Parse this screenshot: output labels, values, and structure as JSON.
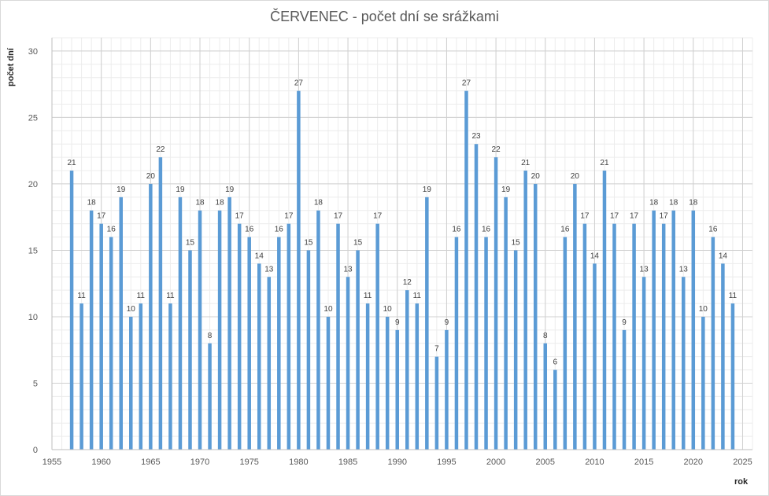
{
  "chart_data": {
    "type": "bar",
    "title": "ČERVENEC - počet dní se srážkami",
    "xlabel": "rok",
    "ylabel": "počet dní",
    "xlim": [
      1955,
      2026
    ],
    "ylim": [
      0,
      31
    ],
    "x_ticks": [
      1955,
      1960,
      1965,
      1970,
      1975,
      1980,
      1985,
      1990,
      1995,
      2000,
      2005,
      2010,
      2015,
      2020,
      2025
    ],
    "y_ticks": [
      0,
      5,
      10,
      15,
      20,
      25,
      30
    ],
    "grid": true,
    "bar_color": "#5b9bd5",
    "categories": [
      1957,
      1958,
      1959,
      1960,
      1961,
      1962,
      1963,
      1964,
      1965,
      1966,
      1967,
      1968,
      1969,
      1970,
      1971,
      1972,
      1973,
      1974,
      1975,
      1976,
      1977,
      1978,
      1979,
      1980,
      1981,
      1982,
      1983,
      1984,
      1985,
      1986,
      1987,
      1988,
      1989,
      1990,
      1991,
      1992,
      1993,
      1994,
      1995,
      1996,
      1997,
      1998,
      1999,
      2000,
      2001,
      2002,
      2003,
      2004,
      2005,
      2006,
      2007,
      2008,
      2009,
      2010,
      2011,
      2012,
      2013,
      2014,
      2015,
      2016,
      2017,
      2018,
      2019,
      2020,
      2021,
      2022,
      2023,
      2024
    ],
    "values": [
      21,
      11,
      18,
      17,
      16,
      19,
      10,
      11,
      20,
      22,
      11,
      19,
      15,
      18,
      8,
      18,
      19,
      17,
      16,
      14,
      13,
      16,
      17,
      27,
      15,
      18,
      10,
      17,
      13,
      15,
      11,
      17,
      10,
      9,
      12,
      11,
      19,
      7,
      9,
      16,
      27,
      23,
      16,
      22,
      19,
      15,
      21,
      20,
      8,
      6,
      16,
      20,
      17,
      14,
      21,
      17,
      9,
      17,
      13,
      18,
      17,
      18,
      13,
      18,
      10,
      16,
      14,
      11
    ]
  }
}
